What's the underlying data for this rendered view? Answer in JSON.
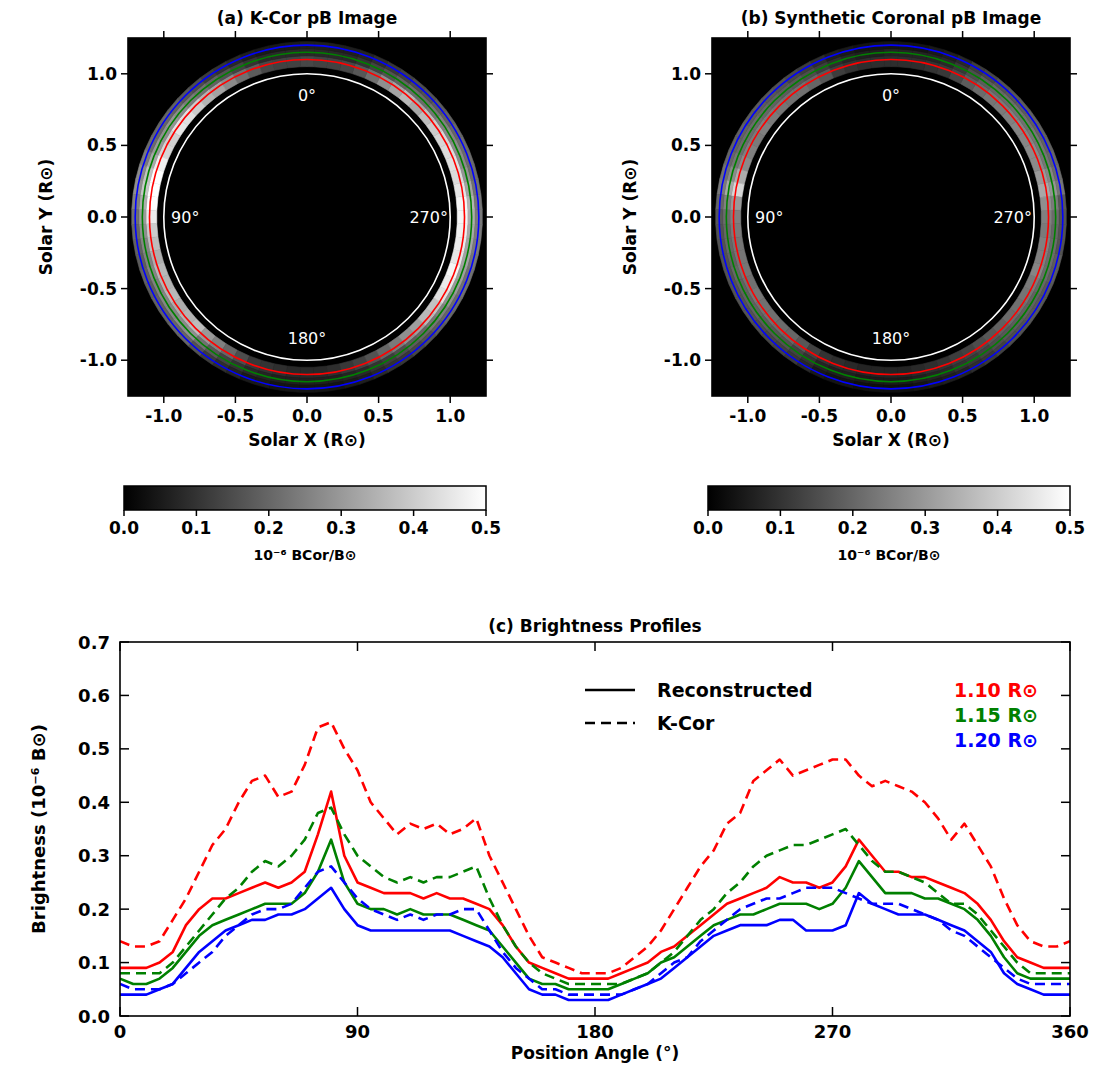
{
  "chart_data": [
    {
      "type": "image",
      "title": "(a) K-Cor pB Image",
      "x_label": "Solar X (R⊙)",
      "y_label": "Solar Y (R⊙)",
      "xlim": [
        -1.25,
        1.25
      ],
      "ylim": [
        -1.25,
        1.25
      ],
      "xticks": [
        {
          "value": -1,
          "label": "-1.0"
        },
        -0.5,
        {
          "value": 0,
          "label": "0.0"
        },
        0.5,
        {
          "value": 1,
          "label": "1.0"
        }
      ],
      "yticks": [
        {
          "value": -1,
          "label": "-1.0"
        },
        -0.5,
        {
          "value": 0,
          "label": "0.0"
        },
        0.5,
        {
          "value": 1,
          "label": "1.0"
        }
      ],
      "circles": [
        {
          "radius": 1.0,
          "color": "white"
        },
        {
          "radius": 1.1,
          "color": "red"
        },
        {
          "radius": 1.15,
          "color": "green"
        },
        {
          "radius": 1.2,
          "color": "blue"
        }
      ],
      "angle_labels": [
        {
          "value": 0,
          "label": "0°"
        },
        {
          "value": 90,
          "label": "90°"
        },
        {
          "value": 180,
          "label": "180°"
        },
        {
          "value": 270,
          "label": "270°"
        }
      ],
      "colorbar": {
        "label": "10⁻⁶ BCor/B⊙",
        "range": [
          0,
          0.5
        ],
        "ticks": [
          {
            "value": 0,
            "label": "0.0"
          },
          0.1,
          0.2,
          0.3,
          0.4,
          0.5
        ]
      }
    },
    {
      "type": "image",
      "title": "(b) Synthetic Coronal pB Image",
      "x_label": "Solar X (R⊙)",
      "y_label": "Solar Y (R⊙)",
      "xlim": [
        -1.25,
        1.25
      ],
      "ylim": [
        -1.25,
        1.25
      ],
      "xticks": [
        {
          "value": -1,
          "label": "-1.0"
        },
        -0.5,
        {
          "value": 0,
          "label": "0.0"
        },
        0.5,
        {
          "value": 1,
          "label": "1.0"
        }
      ],
      "yticks": [
        {
          "value": -1,
          "label": "-1.0"
        },
        -0.5,
        {
          "value": 0,
          "label": "0.0"
        },
        0.5,
        {
          "value": 1,
          "label": "1.0"
        }
      ],
      "circles": [
        {
          "radius": 1.0,
          "color": "white"
        },
        {
          "radius": 1.1,
          "color": "red"
        },
        {
          "radius": 1.15,
          "color": "green"
        },
        {
          "radius": 1.2,
          "color": "blue"
        }
      ],
      "angle_labels": [
        {
          "value": 0,
          "label": "0°"
        },
        {
          "value": 90,
          "label": "90°"
        },
        {
          "value": 180,
          "label": "180°"
        },
        {
          "value": 270,
          "label": "270°"
        }
      ],
      "colorbar": {
        "label": "10⁻⁶ BCor/B⊙",
        "range": [
          0,
          0.5
        ],
        "ticks": [
          {
            "value": 0,
            "label": "0.0"
          },
          0.1,
          0.2,
          0.3,
          0.4,
          0.5
        ]
      }
    },
    {
      "type": "line",
      "title": "(c) Brightness Profiles",
      "x_label": "Position Angle (°)",
      "y_label": "Brightness (10⁻⁶ B⊙)",
      "xlim": [
        0,
        360
      ],
      "ylim": [
        0,
        0.7
      ],
      "xticks": [
        0,
        90,
        180,
        270,
        360
      ],
      "yticks": [
        {
          "value": 0,
          "label": "0.0"
        },
        0.1,
        0.2,
        0.3,
        0.4,
        0.5,
        0.6,
        0.7
      ],
      "legend": "upper right",
      "style_legend": [
        {
          "label": "Reconstructed",
          "line_style": "solid"
        },
        {
          "label": "K-Cor",
          "line_style": "dashed"
        }
      ],
      "x": [
        0,
        5,
        10,
        15,
        20,
        25,
        30,
        35,
        40,
        45,
        50,
        55,
        60,
        65,
        70,
        75,
        80,
        85,
        90,
        95,
        100,
        105,
        110,
        115,
        120,
        125,
        130,
        135,
        140,
        145,
        150,
        155,
        160,
        165,
        170,
        175,
        180,
        185,
        190,
        195,
        200,
        205,
        210,
        215,
        220,
        225,
        230,
        235,
        240,
        245,
        250,
        255,
        260,
        265,
        270,
        275,
        280,
        285,
        290,
        295,
        300,
        305,
        310,
        315,
        320,
        325,
        330,
        335,
        340,
        345,
        350,
        355,
        360
      ],
      "series": [
        {
          "name": "1.10 R⊙",
          "color": "red",
          "line_style": "solid",
          "values": [
            0.09,
            0.09,
            0.09,
            0.1,
            0.12,
            0.17,
            0.2,
            0.22,
            0.22,
            0.23,
            0.24,
            0.25,
            0.24,
            0.25,
            0.27,
            0.34,
            0.42,
            0.3,
            0.25,
            0.24,
            0.23,
            0.23,
            0.23,
            0.22,
            0.23,
            0.22,
            0.22,
            0.21,
            0.2,
            0.17,
            0.13,
            0.1,
            0.09,
            0.08,
            0.07,
            0.07,
            0.07,
            0.07,
            0.08,
            0.09,
            0.1,
            0.12,
            0.13,
            0.15,
            0.17,
            0.19,
            0.21,
            0.22,
            0.23,
            0.24,
            0.26,
            0.25,
            0.25,
            0.24,
            0.25,
            0.28,
            0.33,
            0.3,
            0.27,
            0.27,
            0.26,
            0.26,
            0.25,
            0.24,
            0.23,
            0.21,
            0.18,
            0.14,
            0.11,
            0.1,
            0.09,
            0.09,
            0.09
          ]
        },
        {
          "name": "1.15 R⊙",
          "color": "green",
          "line_style": "solid",
          "values": [
            0.07,
            0.06,
            0.06,
            0.07,
            0.09,
            0.12,
            0.15,
            0.17,
            0.18,
            0.19,
            0.2,
            0.21,
            0.21,
            0.21,
            0.23,
            0.27,
            0.33,
            0.25,
            0.21,
            0.2,
            0.2,
            0.19,
            0.2,
            0.19,
            0.19,
            0.19,
            0.18,
            0.17,
            0.16,
            0.13,
            0.1,
            0.07,
            0.06,
            0.06,
            0.05,
            0.05,
            0.05,
            0.05,
            0.06,
            0.07,
            0.08,
            0.1,
            0.11,
            0.13,
            0.15,
            0.17,
            0.18,
            0.19,
            0.19,
            0.2,
            0.21,
            0.21,
            0.21,
            0.2,
            0.21,
            0.24,
            0.29,
            0.26,
            0.23,
            0.23,
            0.23,
            0.22,
            0.22,
            0.21,
            0.2,
            0.18,
            0.15,
            0.11,
            0.08,
            0.07,
            0.07,
            0.07,
            0.07
          ]
        },
        {
          "name": "1.20 R⊙",
          "color": "blue",
          "line_style": "solid",
          "values": [
            0.04,
            0.04,
            0.04,
            0.05,
            0.06,
            0.09,
            0.12,
            0.14,
            0.16,
            0.17,
            0.18,
            0.18,
            0.19,
            0.19,
            0.2,
            0.22,
            0.24,
            0.2,
            0.17,
            0.16,
            0.16,
            0.16,
            0.16,
            0.16,
            0.16,
            0.16,
            0.15,
            0.14,
            0.13,
            0.11,
            0.08,
            0.05,
            0.04,
            0.04,
            0.03,
            0.03,
            0.03,
            0.03,
            0.04,
            0.05,
            0.06,
            0.07,
            0.09,
            0.11,
            0.13,
            0.15,
            0.16,
            0.17,
            0.17,
            0.17,
            0.18,
            0.18,
            0.16,
            0.16,
            0.16,
            0.17,
            0.23,
            0.21,
            0.2,
            0.19,
            0.19,
            0.19,
            0.18,
            0.17,
            0.16,
            0.14,
            0.12,
            0.08,
            0.06,
            0.05,
            0.04,
            0.04,
            0.04
          ]
        },
        {
          "color": "red",
          "line_style": "dashed",
          "values": [
            0.14,
            0.13,
            0.13,
            0.14,
            0.18,
            0.22,
            0.27,
            0.32,
            0.35,
            0.4,
            0.44,
            0.45,
            0.41,
            0.42,
            0.47,
            0.54,
            0.55,
            0.5,
            0.46,
            0.4,
            0.37,
            0.34,
            0.36,
            0.35,
            0.36,
            0.34,
            0.35,
            0.37,
            0.3,
            0.25,
            0.2,
            0.15,
            0.11,
            0.1,
            0.09,
            0.08,
            0.08,
            0.08,
            0.09,
            0.11,
            0.13,
            0.16,
            0.2,
            0.24,
            0.28,
            0.31,
            0.36,
            0.38,
            0.44,
            0.46,
            0.48,
            0.45,
            0.46,
            0.47,
            0.48,
            0.48,
            0.45,
            0.43,
            0.44,
            0.43,
            0.42,
            0.4,
            0.37,
            0.33,
            0.36,
            0.32,
            0.28,
            0.22,
            0.17,
            0.14,
            0.13,
            0.13,
            0.14
          ]
        },
        {
          "color": "green",
          "line_style": "dashed",
          "values": [
            0.08,
            0.08,
            0.08,
            0.08,
            0.1,
            0.13,
            0.16,
            0.19,
            0.22,
            0.24,
            0.27,
            0.29,
            0.28,
            0.3,
            0.33,
            0.38,
            0.39,
            0.34,
            0.3,
            0.28,
            0.26,
            0.25,
            0.26,
            0.25,
            0.26,
            0.26,
            0.27,
            0.28,
            0.22,
            0.17,
            0.13,
            0.1,
            0.08,
            0.07,
            0.06,
            0.06,
            0.06,
            0.06,
            0.06,
            0.07,
            0.08,
            0.1,
            0.12,
            0.15,
            0.18,
            0.2,
            0.23,
            0.25,
            0.28,
            0.3,
            0.31,
            0.32,
            0.32,
            0.33,
            0.34,
            0.35,
            0.32,
            0.29,
            0.27,
            0.27,
            0.26,
            0.25,
            0.23,
            0.21,
            0.21,
            0.19,
            0.16,
            0.13,
            0.1,
            0.08,
            0.08,
            0.08,
            0.08
          ]
        },
        {
          "color": "blue",
          "line_style": "dashed",
          "values": [
            0.06,
            0.05,
            0.05,
            0.05,
            0.06,
            0.08,
            0.1,
            0.12,
            0.15,
            0.17,
            0.19,
            0.2,
            0.2,
            0.21,
            0.24,
            0.27,
            0.28,
            0.25,
            0.22,
            0.2,
            0.19,
            0.18,
            0.19,
            0.18,
            0.19,
            0.19,
            0.2,
            0.2,
            0.16,
            0.12,
            0.09,
            0.07,
            0.05,
            0.05,
            0.04,
            0.04,
            0.04,
            0.04,
            0.04,
            0.05,
            0.06,
            0.08,
            0.1,
            0.11,
            0.14,
            0.16,
            0.18,
            0.2,
            0.21,
            0.22,
            0.22,
            0.23,
            0.24,
            0.24,
            0.24,
            0.23,
            0.22,
            0.21,
            0.21,
            0.21,
            0.2,
            0.19,
            0.18,
            0.16,
            0.15,
            0.13,
            0.11,
            0.09,
            0.07,
            0.06,
            0.06,
            0.06,
            0.06
          ]
        }
      ]
    }
  ]
}
